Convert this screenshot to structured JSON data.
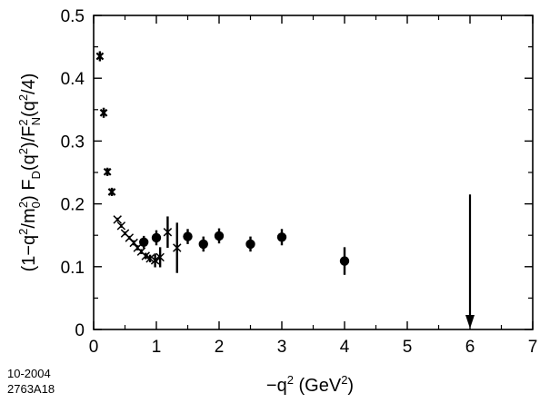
{
  "chart_data": {
    "type": "scatter",
    "xlim": [
      0,
      7
    ],
    "ylim": [
      0,
      0.5
    ],
    "x_ticks": [
      "0",
      "1",
      "2",
      "3",
      "4",
      "5",
      "6",
      "7"
    ],
    "y_ticks": [
      "0",
      "0.1",
      "0.2",
      "0.3",
      "0.4",
      "0.5"
    ],
    "grid": false,
    "series": [
      {
        "marker": "asterisk",
        "points": [
          {
            "x": 0.1,
            "y": 0.435,
            "err": 0.008
          },
          {
            "x": 0.16,
            "y": 0.345,
            "err": 0.008
          },
          {
            "x": 0.22,
            "y": 0.251,
            "err": 0.006
          },
          {
            "x": 0.29,
            "y": 0.219,
            "err": 0.006
          }
        ]
      },
      {
        "marker": "x",
        "points": [
          {
            "x": 0.38,
            "y": 0.175,
            "err": 0.003
          },
          {
            "x": 0.44,
            "y": 0.165,
            "err": 0.003
          },
          {
            "x": 0.5,
            "y": 0.153,
            "err": 0.003
          },
          {
            "x": 0.57,
            "y": 0.146,
            "err": 0.003
          },
          {
            "x": 0.64,
            "y": 0.138,
            "err": 0.004
          },
          {
            "x": 0.7,
            "y": 0.13,
            "err": 0.004
          },
          {
            "x": 0.76,
            "y": 0.124,
            "err": 0.004
          },
          {
            "x": 0.83,
            "y": 0.117,
            "err": 0.005
          },
          {
            "x": 0.9,
            "y": 0.113,
            "err": 0.006
          },
          {
            "x": 0.98,
            "y": 0.11,
            "err": 0.011
          },
          {
            "x": 1.06,
            "y": 0.115,
            "err": 0.016
          },
          {
            "x": 1.18,
            "y": 0.155,
            "err": 0.025
          },
          {
            "x": 1.33,
            "y": 0.13,
            "err": 0.04
          }
        ]
      },
      {
        "marker": "filled-circle",
        "points": [
          {
            "x": 0.8,
            "y": 0.139,
            "err": 0.01
          },
          {
            "x": 1.0,
            "y": 0.146,
            "err": 0.012
          },
          {
            "x": 1.5,
            "y": 0.148,
            "err": 0.012
          },
          {
            "x": 1.75,
            "y": 0.136,
            "err": 0.012
          },
          {
            "x": 2.0,
            "y": 0.149,
            "err": 0.012
          },
          {
            "x": 2.5,
            "y": 0.136,
            "err": 0.012
          },
          {
            "x": 3.0,
            "y": 0.147,
            "err": 0.013
          },
          {
            "x": 4.0,
            "y": 0.109,
            "err": 0.022
          }
        ]
      }
    ],
    "annotations": [
      {
        "type": "arrow-down",
        "x": 6.0,
        "y_from": 0.215,
        "y_to": 0.0
      }
    ]
  },
  "labels": {
    "ylabel_paren": "(1−q",
    "ylabel_sup1": "2",
    "ylabel_slash_m": "/m",
    "ylabel_sub0": "0",
    "ylabel_sup2": "2",
    "ylabel_fd": ") F",
    "ylabel_subD": "D",
    "ylabel_q": "(q",
    "ylabel_sup3": "2",
    "ylabel_slashF": ")/F",
    "ylabel_supN2": "2",
    "ylabel_subN": "N",
    "ylabel_q4": "(q",
    "ylabel_sup4": "2",
    "ylabel_end": "/4)",
    "xlabel_minus_q": "−q",
    "xlabel_sup": "2",
    "xlabel_unit": " (GeV",
    "xlabel_unit_sup": "2",
    "xlabel_close": ")"
  },
  "corner_note": {
    "line1": "10-2004",
    "line2": "2763A18"
  }
}
